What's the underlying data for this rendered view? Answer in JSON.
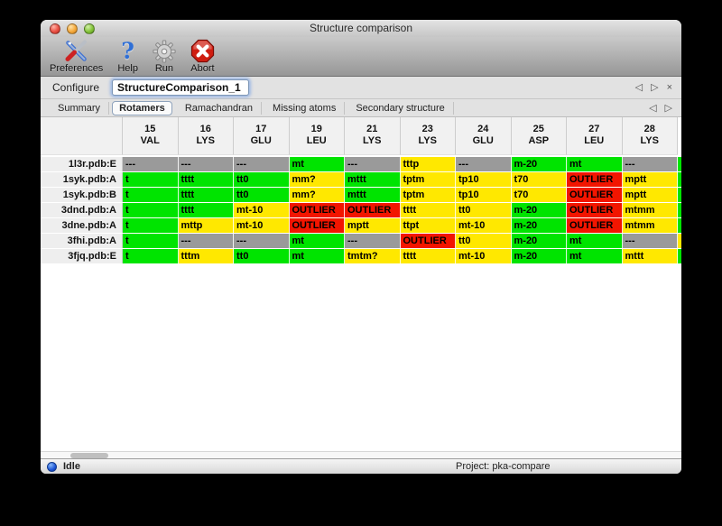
{
  "window": {
    "title": "Structure comparison"
  },
  "toolbar": {
    "buttons": [
      {
        "label": "Preferences"
      },
      {
        "label": "Help"
      },
      {
        "label": "Run"
      },
      {
        "label": "Abort"
      }
    ]
  },
  "configure": {
    "label": "Configure",
    "value": "StructureComparison_1"
  },
  "nav": {
    "back": "◁",
    "forward": "▷",
    "close": "×"
  },
  "tabs": [
    {
      "label": "Summary",
      "active": false
    },
    {
      "label": "Rotamers",
      "active": true
    },
    {
      "label": "Ramachandran",
      "active": false
    },
    {
      "label": "Missing atoms",
      "active": false
    },
    {
      "label": "Secondary structure",
      "active": false
    }
  ],
  "table": {
    "colors": {
      "green": "#00e400",
      "yellow": "#ffe800",
      "red": "#f21500",
      "gray": "#9a9a9a"
    },
    "columns": [
      [
        "15",
        "VAL"
      ],
      [
        "16",
        "LYS"
      ],
      [
        "17",
        "GLU"
      ],
      [
        "19",
        "LEU"
      ],
      [
        "21",
        "LYS"
      ],
      [
        "23",
        "LYS"
      ],
      [
        "24",
        "GLU"
      ],
      [
        "25",
        "ASP"
      ],
      [
        "27",
        "LEU"
      ],
      [
        "28",
        "LYS"
      ]
    ],
    "rows": [
      {
        "label": "1l3r.pdb:E",
        "sliver": "green",
        "cells": [
          [
            "---",
            "gray"
          ],
          [
            "---",
            "gray"
          ],
          [
            "---",
            "gray"
          ],
          [
            "mt",
            "green"
          ],
          [
            "---",
            "gray"
          ],
          [
            "tttp",
            "yellow"
          ],
          [
            "---",
            "gray"
          ],
          [
            "m-20",
            "green"
          ],
          [
            "mt",
            "green"
          ],
          [
            "---",
            "gray"
          ]
        ]
      },
      {
        "label": "1syk.pdb:A",
        "sliver": "green",
        "cells": [
          [
            "t",
            "green"
          ],
          [
            "tttt",
            "green"
          ],
          [
            "tt0",
            "green"
          ],
          [
            "mm?",
            "yellow"
          ],
          [
            "mttt",
            "green"
          ],
          [
            "tptm",
            "yellow"
          ],
          [
            "tp10",
            "yellow"
          ],
          [
            "t70",
            "yellow"
          ],
          [
            "OUTLIER",
            "red"
          ],
          [
            "mptt",
            "yellow"
          ]
        ]
      },
      {
        "label": "1syk.pdb:B",
        "sliver": "green",
        "cells": [
          [
            "t",
            "green"
          ],
          [
            "tttt",
            "green"
          ],
          [
            "tt0",
            "green"
          ],
          [
            "mm?",
            "yellow"
          ],
          [
            "mttt",
            "green"
          ],
          [
            "tptm",
            "yellow"
          ],
          [
            "tp10",
            "yellow"
          ],
          [
            "t70",
            "yellow"
          ],
          [
            "OUTLIER",
            "red"
          ],
          [
            "mptt",
            "yellow"
          ]
        ]
      },
      {
        "label": "3dnd.pdb:A",
        "sliver": "green",
        "cells": [
          [
            "t",
            "green"
          ],
          [
            "tttt",
            "green"
          ],
          [
            "mt-10",
            "yellow"
          ],
          [
            "OUTLIER",
            "red"
          ],
          [
            "OUTLIER",
            "red"
          ],
          [
            "tttt",
            "yellow"
          ],
          [
            "tt0",
            "yellow"
          ],
          [
            "m-20",
            "green"
          ],
          [
            "OUTLIER",
            "red"
          ],
          [
            "mtmm",
            "yellow"
          ]
        ]
      },
      {
        "label": "3dne.pdb:A",
        "sliver": "green",
        "cells": [
          [
            "t",
            "green"
          ],
          [
            "mttp",
            "yellow"
          ],
          [
            "mt-10",
            "yellow"
          ],
          [
            "OUTLIER",
            "red"
          ],
          [
            "mptt",
            "yellow"
          ],
          [
            "ttpt",
            "yellow"
          ],
          [
            "mt-10",
            "yellow"
          ],
          [
            "m-20",
            "green"
          ],
          [
            "OUTLIER",
            "red"
          ],
          [
            "mtmm",
            "yellow"
          ]
        ]
      },
      {
        "label": "3fhi.pdb:A",
        "sliver": "yellow",
        "cells": [
          [
            "t",
            "green"
          ],
          [
            "---",
            "gray"
          ],
          [
            "---",
            "gray"
          ],
          [
            "mt",
            "green"
          ],
          [
            "---",
            "gray"
          ],
          [
            "OUTLIER",
            "red"
          ],
          [
            "tt0",
            "yellow"
          ],
          [
            "m-20",
            "green"
          ],
          [
            "mt",
            "green"
          ],
          [
            "---",
            "gray"
          ]
        ]
      },
      {
        "label": "3fjq.pdb:E",
        "sliver": "green",
        "cells": [
          [
            "t",
            "green"
          ],
          [
            "tttm",
            "yellow"
          ],
          [
            "tt0",
            "green"
          ],
          [
            "mt",
            "green"
          ],
          [
            "tmtm?",
            "yellow"
          ],
          [
            "tttt",
            "yellow"
          ],
          [
            "mt-10",
            "yellow"
          ],
          [
            "m-20",
            "green"
          ],
          [
            "mt",
            "green"
          ],
          [
            "mttt",
            "yellow"
          ]
        ]
      }
    ]
  },
  "statusbar": {
    "state": "Idle",
    "project": "Project: pka-compare"
  }
}
